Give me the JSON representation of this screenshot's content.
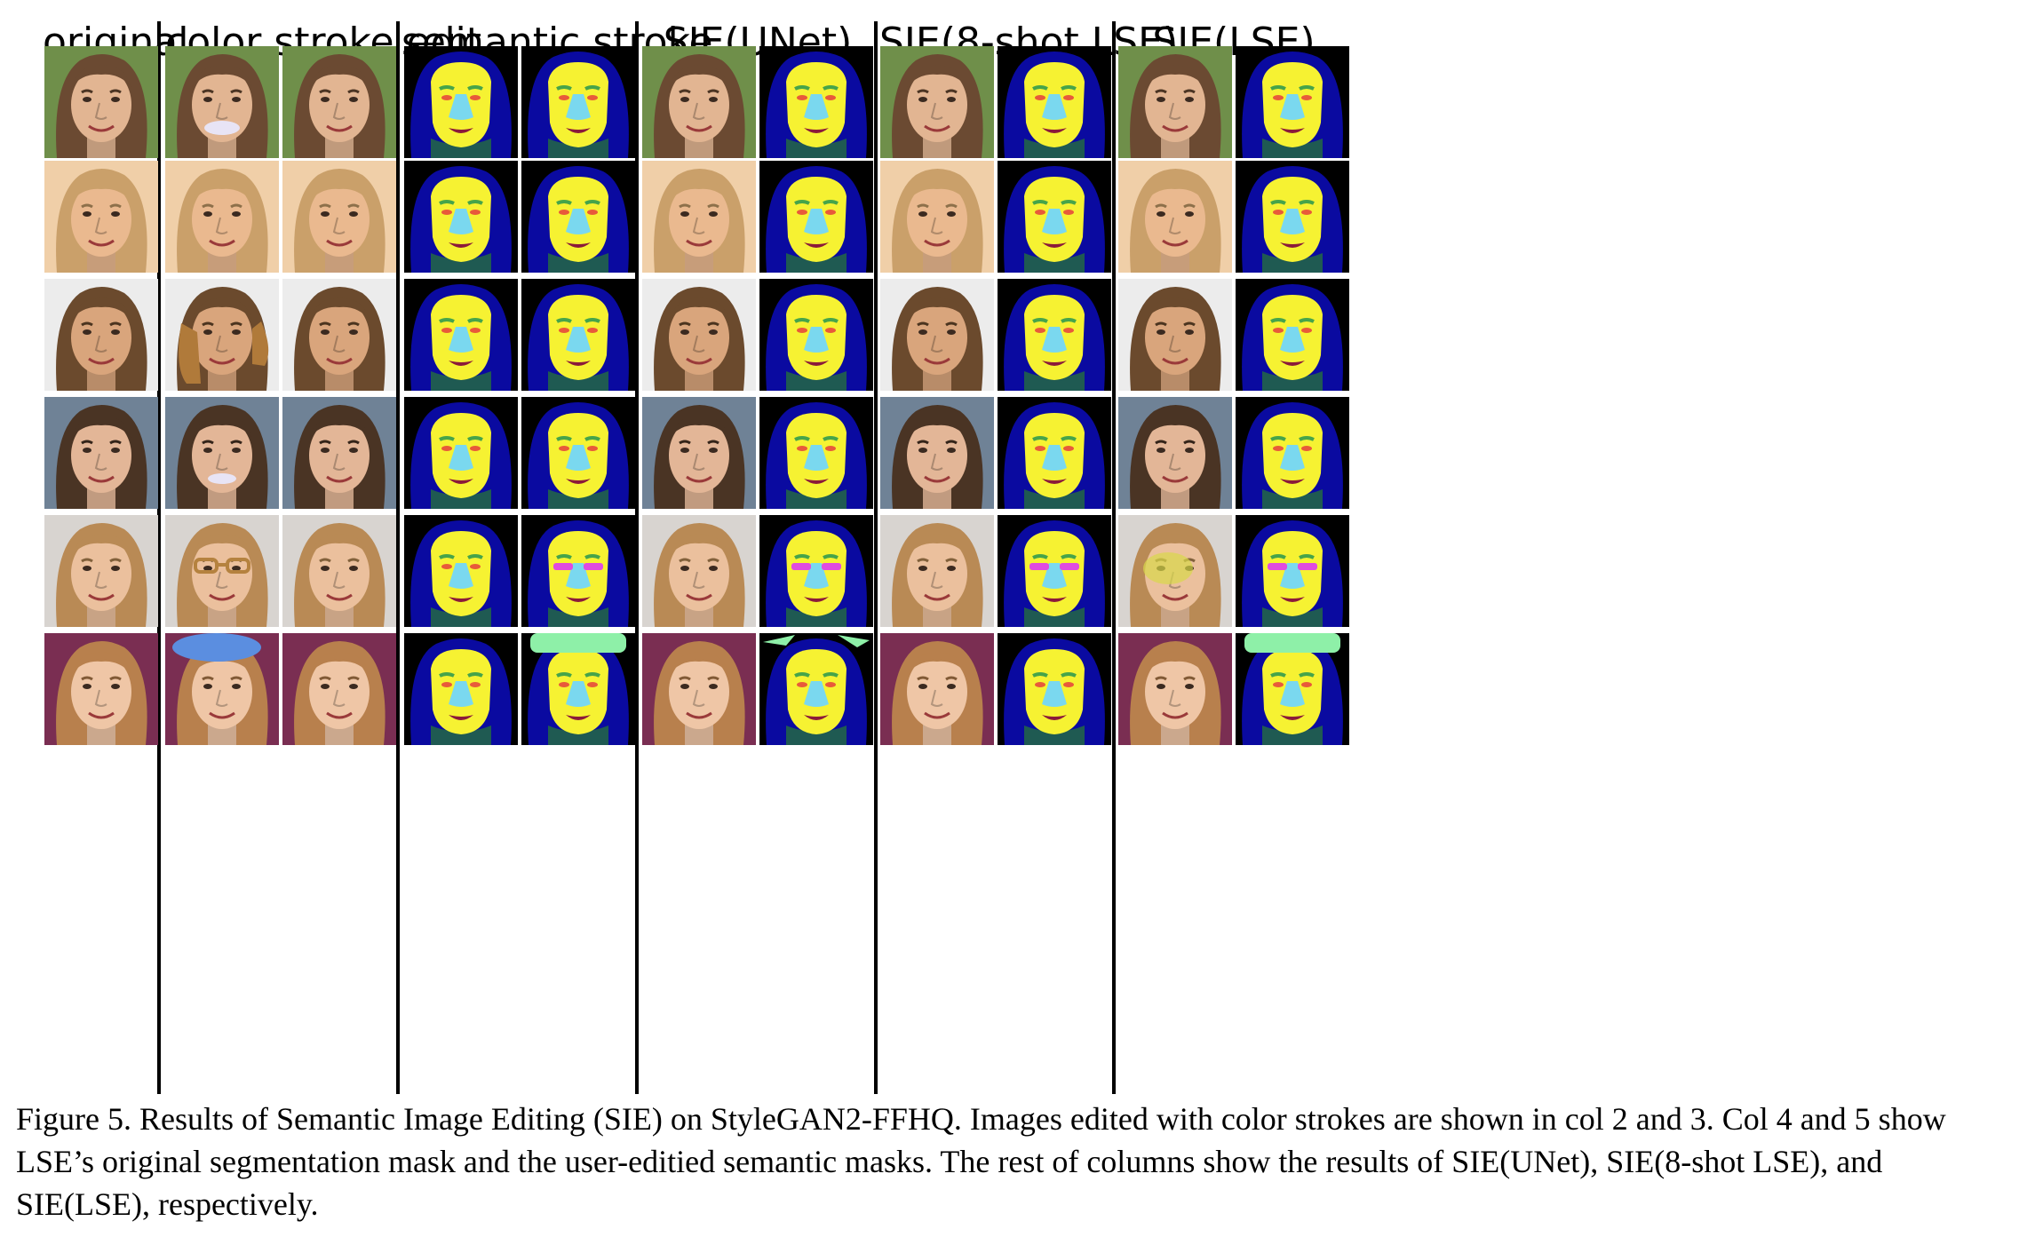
{
  "figure": {
    "headers": [
      "original",
      "color stroke edit",
      "semantic stroke",
      "SIE(UNet)",
      "SIE(8-shot LSE)",
      "SIE(LSE)"
    ],
    "caption": "Figure 5. Results of Semantic Image Editing (SIE) on StyleGAN2-FFHQ. Images edited with color strokes are shown in col 2 and 3. Col 4 and 5 show LSE’s original segmentation mask and the user-editied semantic masks. The rest of columns show the results of SIE(UNet), SIE(8-shot LSE), and SIE(LSE), respectively.",
    "grid": {
      "rows": 6,
      "columns": 11,
      "column_types": [
        "photo",
        "photo",
        "photo",
        "mask",
        "mask",
        "photo",
        "mask",
        "photo",
        "mask",
        "photo",
        "mask"
      ]
    },
    "rows": [
      {
        "background": "#6f8f4a",
        "skin": "#e2b592",
        "hair": "#6b4a32"
      },
      {
        "background": "#f0cfa8",
        "skin": "#eab98f",
        "hair": "#caa06a"
      },
      {
        "background": "#ececec",
        "skin": "#d9a57c",
        "hair": "#6b4a2d"
      },
      {
        "background": "#6f8296",
        "skin": "#e3b697",
        "hair": "#4a3424"
      },
      {
        "background": "#d8d4d0",
        "skin": "#ebc09d",
        "hair": "#b98a55"
      },
      {
        "background": "#7a2e52",
        "skin": "#efc6a6",
        "hair": "#b8804d"
      }
    ],
    "mask_colors": {
      "background": "#000000",
      "hair": "#0a0aa0",
      "skin": "#f6f232",
      "neck": "#1f5a52",
      "nose": "#7ad8ef",
      "eyes": "#e85a3a",
      "brows": "#46a44a",
      "mouth": "#8b1a3a",
      "glasses": "#e04be0",
      "hat": "#8ef0a8"
    },
    "stroke_colors": {
      "teeth": "#e8e4f5",
      "hair": "#b07a3a",
      "glasses": "#b5823f",
      "hat": "#5b8ee0"
    }
  }
}
